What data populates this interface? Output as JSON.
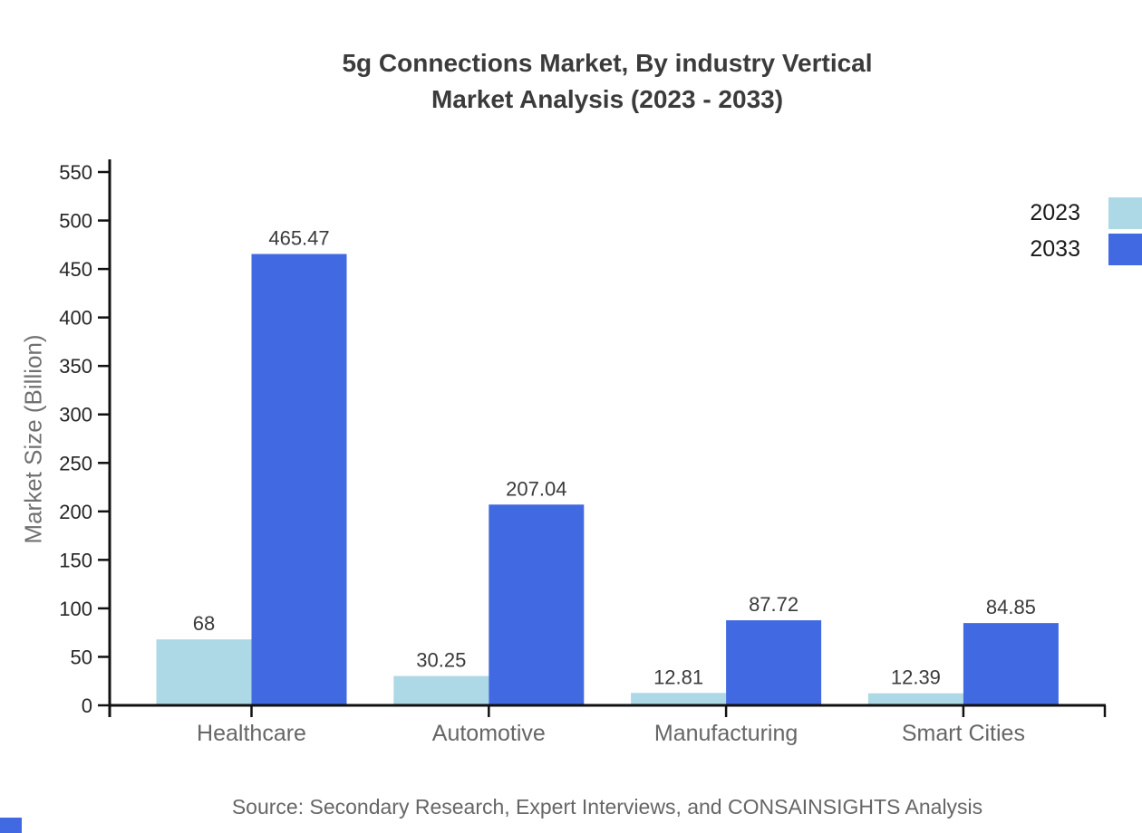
{
  "title": {
    "line1": "5g Connections Market, By industry Vertical",
    "line2": "Market Analysis (2023 - 2033)"
  },
  "legend": {
    "items": [
      {
        "label": "2023",
        "color": "#add8e6"
      },
      {
        "label": "2033",
        "color": "#4169e1"
      }
    ]
  },
  "axes": {
    "y_label": "Market Size (Billion)"
  },
  "source": {
    "text": "Source: Secondary Research, Expert Interviews, and CONSAINSIGHTS Analysis"
  },
  "colors": {
    "series_2023": "#add8e6",
    "series_2033": "#4169e1",
    "axis_line": "#111111",
    "tick_text": "#262626",
    "category_text": "#666666",
    "value_text": "#3a3a3a",
    "title_text": "#3b3b3b",
    "source_text": "#666666",
    "brand": "#4169e1"
  },
  "chart_data": {
    "type": "bar",
    "title": "5g Connections Market, By industry Vertical Market Analysis (2023 - 2033)",
    "categories": [
      "Healthcare",
      "Automotive",
      "Manufacturing",
      "Smart Cities"
    ],
    "series": [
      {
        "name": "2023",
        "color": "#add8e6",
        "values": [
          68,
          30.25,
          12.81,
          12.39
        ]
      },
      {
        "name": "2033",
        "color": "#4169e1",
        "values": [
          465.47,
          207.04,
          87.72,
          84.85
        ]
      }
    ],
    "value_labels": {
      "2023": [
        "68",
        "30.25",
        "12.81",
        "12.39"
      ],
      "2033": [
        "465.47",
        "207.04",
        "87.72",
        "84.85"
      ]
    },
    "xlabel": "",
    "ylabel": "Market Size (Billion)",
    "ylim": [
      0,
      550
    ],
    "yticks": [
      0,
      50,
      100,
      150,
      200,
      250,
      300,
      350,
      400,
      450,
      500,
      550
    ],
    "grid": false,
    "legend_position": "top-right",
    "bar_value_labels_shown": true
  }
}
